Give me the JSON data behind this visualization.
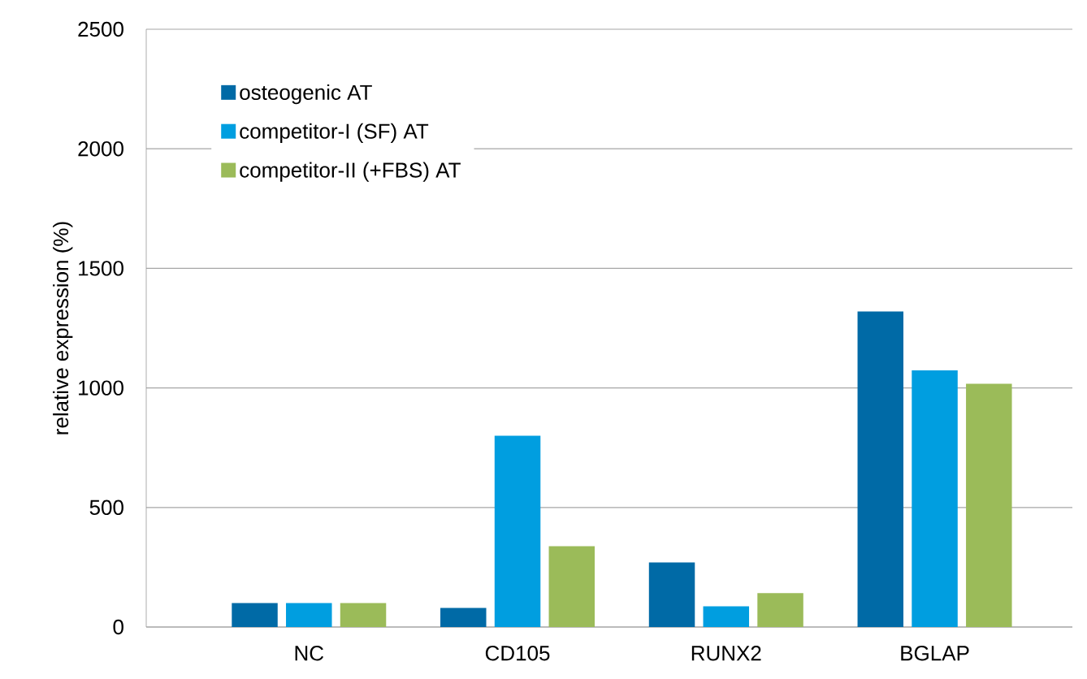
{
  "chart_data": {
    "type": "bar",
    "ylabel": "relative expression (%)",
    "categories": [
      "NC",
      "CD105",
      "RUNX2",
      "BGLAP"
    ],
    "series": [
      {
        "name": "osteogenic AT",
        "color": "#006aa6",
        "values": [
          100,
          80,
          270,
          1320
        ]
      },
      {
        "name": "competitor-I (SF) AT",
        "color": "#009ee0",
        "values": [
          100,
          800,
          87,
          1073
        ]
      },
      {
        "name": "competitor-II (+FBS) AT",
        "color": "#9bbb59",
        "values": [
          100,
          338,
          142,
          1017
        ]
      }
    ],
    "ylim": [
      0,
      2500
    ],
    "yticks": [
      0,
      500,
      1000,
      1500,
      2000,
      2500
    ],
    "grid": "y",
    "legend": "top left"
  }
}
